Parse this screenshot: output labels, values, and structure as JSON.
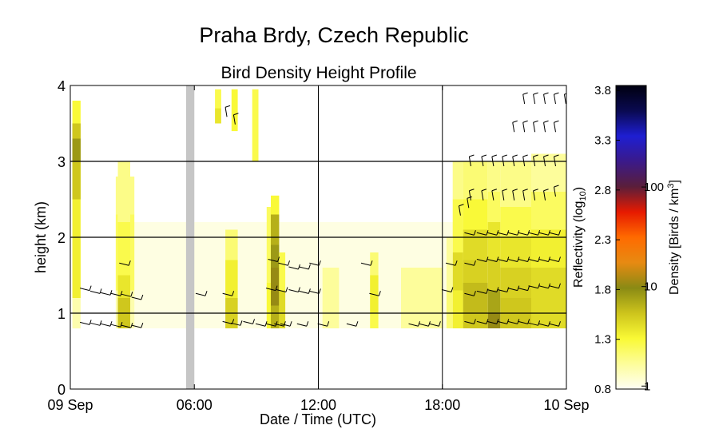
{
  "chart_data": {
    "type": "heatmap",
    "title": "Praha Brdy, Czech Republic",
    "subtitle": "Bird Density Height Profile",
    "xlabel": "Date / Time (UTC)",
    "ylabel": "height (km)",
    "xlim_hours": [
      0,
      24
    ],
    "ylim": [
      0,
      4
    ],
    "x_ticks": [
      {
        "hour": 0,
        "label": "09 Sep"
      },
      {
        "hour": 6,
        "label": "06:00"
      },
      {
        "hour": 12,
        "label": "12:00"
      },
      {
        "hour": 18,
        "label": "18:00"
      },
      {
        "hour": 24,
        "label": "10 Sep"
      }
    ],
    "y_ticks": [
      0,
      1,
      2,
      3,
      4
    ],
    "grid_hours": [
      12,
      18
    ],
    "grid_heights": [
      1,
      2,
      3
    ],
    "missing_data": {
      "from_hour": 5.6,
      "to_hour": 6.0
    },
    "colorbar": {
      "left_label": "Reflectivity (log",
      "left_label_sub": "10",
      "left_label_end": ")",
      "left_ticks": [
        "3.8",
        "3.3",
        "2.8",
        "2.3",
        "1.8",
        "1.3",
        "0.8"
      ],
      "left_range": [
        0.8,
        3.85
      ],
      "right_label": "Density [Birds / km",
      "right_label_sup": "3",
      "right_label_end": "]",
      "right_ticks": [
        {
          "label": "100",
          "refl": 2.83
        },
        {
          "label": "10",
          "refl": 1.83
        },
        {
          "label": "1",
          "refl": 0.83
        }
      ],
      "colors": [
        "#fefef4",
        "#fdfd9a",
        "#f9f935",
        "#cdc41c",
        "#8a8a14",
        "#e78a12",
        "#ff6a00",
        "#e61a00",
        "#5a1e3a",
        "#3a1a8a",
        "#1e1ed2",
        "#0a0a50",
        "#000010"
      ]
    },
    "cells": [
      {
        "h": 0.1,
        "w": 0.4,
        "z": [
          [
            0.8,
            1.95,
            1.0
          ],
          [
            1.2,
            3.3,
            1.35
          ],
          [
            2.5,
            3.5,
            1.55
          ],
          [
            3.0,
            3.3,
            1.75
          ],
          [
            3.3,
            3.5,
            1.55
          ],
          [
            3.5,
            3.8,
            1.3
          ]
        ]
      },
      {
        "h": 2.2,
        "w": 0.9,
        "z": [
          [
            0.8,
            1.3,
            1.0
          ],
          [
            1.3,
            2.3,
            1.2
          ],
          [
            2.3,
            2.8,
            1.1
          ]
        ]
      },
      {
        "h": 2.3,
        "w": 0.6,
        "z": [
          [
            0.8,
            1.2,
            1.55
          ],
          [
            1.2,
            1.5,
            1.4
          ],
          [
            1.5,
            2.2,
            1.25
          ],
          [
            2.2,
            3.0,
            1.1
          ]
        ]
      },
      {
        "h": 7.0,
        "w": 0.3,
        "z": [
          [
            3.5,
            3.7,
            1.4
          ],
          [
            3.7,
            3.95,
            1.25
          ]
        ]
      },
      {
        "h": 7.5,
        "w": 0.6,
        "z": [
          [
            0.8,
            1.2,
            1.5
          ],
          [
            1.2,
            1.7,
            1.35
          ],
          [
            1.7,
            2.1,
            1.15
          ]
        ]
      },
      {
        "h": 7.8,
        "w": 0.3,
        "z": [
          [
            3.4,
            3.95,
            1.3
          ]
        ]
      },
      {
        "h": 8.8,
        "w": 0.3,
        "z": [
          [
            3.0,
            3.95,
            1.25
          ]
        ]
      },
      {
        "h": 9.5,
        "w": 0.2,
        "z": [
          [
            0.8,
            1.4,
            1.3
          ],
          [
            1.4,
            2.4,
            1.2
          ]
        ]
      },
      {
        "h": 9.7,
        "w": 0.4,
        "z": [
          [
            0.8,
            1.1,
            1.65
          ],
          [
            1.1,
            1.6,
            1.85
          ],
          [
            1.6,
            1.9,
            1.75
          ],
          [
            1.9,
            2.3,
            1.65
          ],
          [
            2.3,
            2.55,
            1.3
          ]
        ]
      },
      {
        "h": 10.1,
        "w": 0.3,
        "z": [
          [
            0.8,
            1.3,
            1.45
          ],
          [
            1.3,
            1.8,
            1.25
          ]
        ]
      },
      {
        "h": 12.2,
        "w": 0.8,
        "z": [
          [
            0.8,
            1.6,
            1.05
          ]
        ]
      },
      {
        "h": 14.5,
        "w": 0.4,
        "z": [
          [
            0.8,
            1.0,
            1.25
          ],
          [
            1.0,
            1.5,
            1.35
          ],
          [
            1.5,
            1.8,
            1.15
          ]
        ]
      },
      {
        "h": 16.0,
        "w": 2.0,
        "z": [
          [
            0.8,
            1.6,
            1.05
          ]
        ]
      },
      {
        "h": 18.2,
        "w": 0.3,
        "z": [
          [
            0.8,
            1.3,
            1.15
          ],
          [
            1.3,
            2.0,
            1.05
          ]
        ]
      },
      {
        "h": 18.5,
        "w": 0.5,
        "z": [
          [
            0.8,
            1.3,
            1.35
          ],
          [
            1.3,
            1.8,
            1.45
          ],
          [
            1.8,
            2.5,
            1.25
          ],
          [
            2.5,
            3.0,
            1.1
          ]
        ]
      },
      {
        "h": 19.0,
        "w": 1.2,
        "z": [
          [
            0.8,
            1.0,
            1.55
          ],
          [
            1.0,
            1.4,
            1.6
          ],
          [
            1.4,
            1.7,
            1.5
          ],
          [
            1.7,
            2.1,
            1.45
          ],
          [
            2.1,
            2.5,
            1.3
          ],
          [
            2.5,
            3.0,
            1.15
          ]
        ]
      },
      {
        "h": 20.2,
        "w": 0.6,
        "z": [
          [
            0.8,
            1.0,
            1.85
          ],
          [
            1.0,
            1.3,
            1.7
          ],
          [
            1.3,
            1.7,
            1.5
          ],
          [
            1.7,
            2.2,
            1.4
          ],
          [
            2.2,
            2.6,
            1.2
          ],
          [
            2.6,
            3.0,
            1.1
          ]
        ]
      },
      {
        "h": 20.8,
        "w": 1.5,
        "z": [
          [
            0.8,
            1.2,
            1.55
          ],
          [
            1.2,
            1.6,
            1.5
          ],
          [
            1.6,
            2.0,
            1.4
          ],
          [
            2.0,
            2.4,
            1.25
          ],
          [
            2.4,
            3.0,
            1.1
          ]
        ]
      },
      {
        "h": 22.3,
        "w": 1.7,
        "z": [
          [
            0.8,
            1.2,
            1.45
          ],
          [
            1.2,
            1.6,
            1.45
          ],
          [
            1.6,
            2.1,
            1.35
          ],
          [
            2.1,
            2.6,
            1.2
          ],
          [
            2.6,
            3.1,
            1.05
          ]
        ]
      },
      {
        "h": 2.2,
        "w": 21.8,
        "z": [
          [
            0.8,
            2.2,
            0.85
          ]
        ]
      }
    ],
    "wind_barbs": [
      {
        "h": 0.7,
        "k": 0.87
      },
      {
        "h": 1.2,
        "k": 0.86
      },
      {
        "h": 1.7,
        "k": 0.85
      },
      {
        "h": 2.2,
        "k": 0.84
      },
      {
        "h": 2.7,
        "k": 0.83
      },
      {
        "h": 3.2,
        "k": 0.83
      },
      {
        "h": 0.7,
        "k": 1.32
      },
      {
        "h": 1.2,
        "k": 1.28
      },
      {
        "h": 1.7,
        "k": 1.26
      },
      {
        "h": 2.2,
        "k": 1.25
      },
      {
        "h": 2.7,
        "k": 1.24
      },
      {
        "h": 3.2,
        "k": 1.2
      },
      {
        "h": 2.6,
        "k": 1.65
      },
      {
        "h": 6.3,
        "k": 1.25
      },
      {
        "h": 7.6,
        "k": 1.25
      },
      {
        "h": 7.6,
        "k": 0.88
      },
      {
        "h": 8.0,
        "k": 0.86
      },
      {
        "h": 7.5,
        "k": 3.65
      },
      {
        "h": 7.9,
        "k": 3.55
      },
      {
        "h": 8.6,
        "k": 0.88
      },
      {
        "h": 9.2,
        "k": 0.85
      },
      {
        "h": 9.7,
        "k": 0.85
      },
      {
        "h": 10.1,
        "k": 0.85
      },
      {
        "h": 9.8,
        "k": 1.7
      },
      {
        "h": 10.3,
        "k": 1.65
      },
      {
        "h": 10.8,
        "k": 1.6
      },
      {
        "h": 11.3,
        "k": 1.6
      },
      {
        "h": 11.8,
        "k": 1.65
      },
      {
        "h": 9.7,
        "k": 1.32
      },
      {
        "h": 10.2,
        "k": 1.3
      },
      {
        "h": 10.8,
        "k": 1.3
      },
      {
        "h": 11.3,
        "k": 1.28
      },
      {
        "h": 11.8,
        "k": 1.28
      },
      {
        "h": 10.4,
        "k": 0.85
      },
      {
        "h": 11.2,
        "k": 0.85
      },
      {
        "h": 12.2,
        "k": 0.85
      },
      {
        "h": 13.6,
        "k": 0.85
      },
      {
        "h": 14.3,
        "k": 1.65
      },
      {
        "h": 14.7,
        "k": 1.25
      },
      {
        "h": 16.6,
        "k": 0.85
      },
      {
        "h": 17.1,
        "k": 0.85
      },
      {
        "h": 17.6,
        "k": 0.85
      },
      {
        "h": 18.4,
        "k": 1.65
      },
      {
        "h": 18.2,
        "k": 1.3
      },
      {
        "h": 18.8,
        "k": 2.35
      },
      {
        "h": 19.2,
        "k": 2.45
      },
      {
        "h": 19.3,
        "k": 0.88
      },
      {
        "h": 19.9,
        "k": 0.88
      },
      {
        "h": 20.4,
        "k": 0.88
      },
      {
        "h": 20.9,
        "k": 0.88
      },
      {
        "h": 21.4,
        "k": 0.88
      },
      {
        "h": 21.9,
        "k": 0.88
      },
      {
        "h": 22.4,
        "k": 0.86
      },
      {
        "h": 22.9,
        "k": 0.85
      },
      {
        "h": 23.4,
        "k": 0.85
      },
      {
        "h": 19.3,
        "k": 1.25
      },
      {
        "h": 19.9,
        "k": 1.28
      },
      {
        "h": 20.4,
        "k": 1.3
      },
      {
        "h": 20.9,
        "k": 1.3
      },
      {
        "h": 21.4,
        "k": 1.32
      },
      {
        "h": 21.9,
        "k": 1.32
      },
      {
        "h": 22.4,
        "k": 1.35
      },
      {
        "h": 22.9,
        "k": 1.35
      },
      {
        "h": 23.4,
        "k": 1.35
      },
      {
        "h": 19.3,
        "k": 1.65
      },
      {
        "h": 19.9,
        "k": 1.7
      },
      {
        "h": 20.4,
        "k": 1.7
      },
      {
        "h": 20.9,
        "k": 1.7
      },
      {
        "h": 21.4,
        "k": 1.7
      },
      {
        "h": 21.9,
        "k": 1.7
      },
      {
        "h": 22.4,
        "k": 1.7
      },
      {
        "h": 22.9,
        "k": 1.7
      },
      {
        "h": 23.4,
        "k": 1.7
      },
      {
        "h": 19.3,
        "k": 2.05
      },
      {
        "h": 19.9,
        "k": 2.05
      },
      {
        "h": 20.4,
        "k": 2.05
      },
      {
        "h": 20.9,
        "k": 2.05
      },
      {
        "h": 21.4,
        "k": 2.05
      },
      {
        "h": 21.9,
        "k": 2.05
      },
      {
        "h": 22.4,
        "k": 2.05
      },
      {
        "h": 22.9,
        "k": 2.05
      },
      {
        "h": 23.4,
        "k": 2.05
      },
      {
        "h": 19.3,
        "k": 2.55
      },
      {
        "h": 19.9,
        "k": 2.55
      },
      {
        "h": 20.4,
        "k": 2.55
      },
      {
        "h": 20.9,
        "k": 2.55
      },
      {
        "h": 21.4,
        "k": 2.55
      },
      {
        "h": 21.9,
        "k": 2.55
      },
      {
        "h": 22.4,
        "k": 2.55
      },
      {
        "h": 22.9,
        "k": 2.55
      },
      {
        "h": 23.4,
        "k": 2.6
      },
      {
        "h": 19.3,
        "k": 3.0
      },
      {
        "h": 19.9,
        "k": 3.0
      },
      {
        "h": 20.4,
        "k": 3.0
      },
      {
        "h": 20.9,
        "k": 3.0
      },
      {
        "h": 21.4,
        "k": 3.0
      },
      {
        "h": 21.9,
        "k": 3.0
      },
      {
        "h": 22.4,
        "k": 3.0
      },
      {
        "h": 22.9,
        "k": 3.0
      },
      {
        "h": 23.4,
        "k": 3.0
      },
      {
        "h": 21.4,
        "k": 3.45
      },
      {
        "h": 21.9,
        "k": 3.45
      },
      {
        "h": 22.4,
        "k": 3.45
      },
      {
        "h": 22.9,
        "k": 3.45
      },
      {
        "h": 23.4,
        "k": 3.45
      },
      {
        "h": 21.9,
        "k": 3.82
      },
      {
        "h": 22.4,
        "k": 3.82
      },
      {
        "h": 22.9,
        "k": 3.82
      },
      {
        "h": 23.4,
        "k": 3.82
      },
      {
        "h": 23.9,
        "k": 3.82
      }
    ]
  }
}
